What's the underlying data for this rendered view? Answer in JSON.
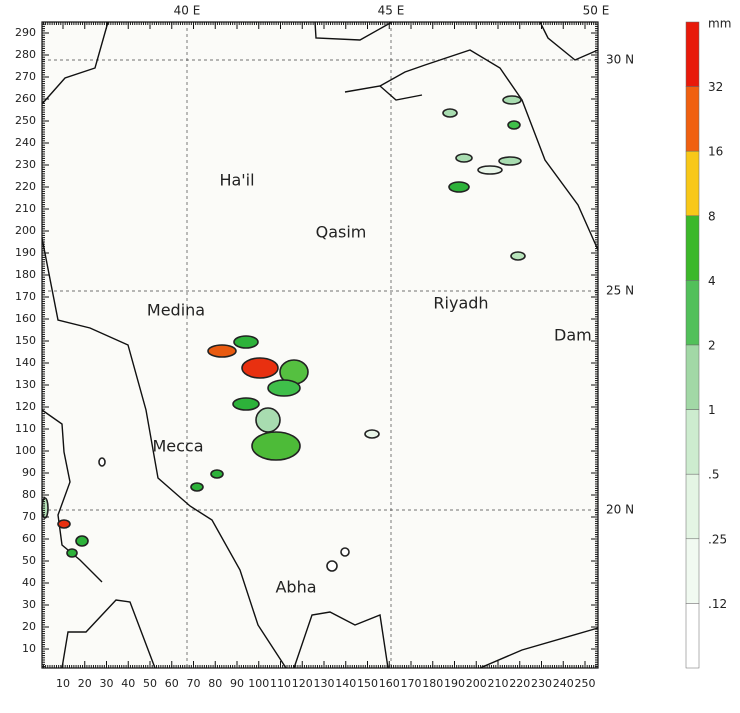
{
  "map": {
    "top_labels": [
      "40 E",
      "45 E",
      "50 E"
    ],
    "right_labels": [
      "30 N",
      "25 N",
      "20 N"
    ],
    "x_ticks": [
      10,
      20,
      30,
      40,
      50,
      60,
      70,
      80,
      90,
      100,
      110,
      120,
      130,
      140,
      150,
      160,
      170,
      180,
      190,
      200,
      210,
      220,
      230,
      240,
      250
    ],
    "y_ticks": [
      10,
      20,
      30,
      40,
      50,
      60,
      70,
      80,
      90,
      100,
      110,
      120,
      130,
      140,
      150,
      160,
      170,
      180,
      190,
      200,
      210,
      220,
      230,
      240,
      250,
      260,
      270,
      280,
      290
    ],
    "places": [
      "Ha'il",
      "Qasim",
      "Medina",
      "Riyadh",
      "Dam",
      "Mecca",
      "Abha"
    ],
    "legend": {
      "unit": "mm",
      "labels": [
        "32",
        "16",
        "8",
        "4",
        "2",
        "1",
        ".5",
        ".25",
        ".12"
      ]
    }
  }
}
